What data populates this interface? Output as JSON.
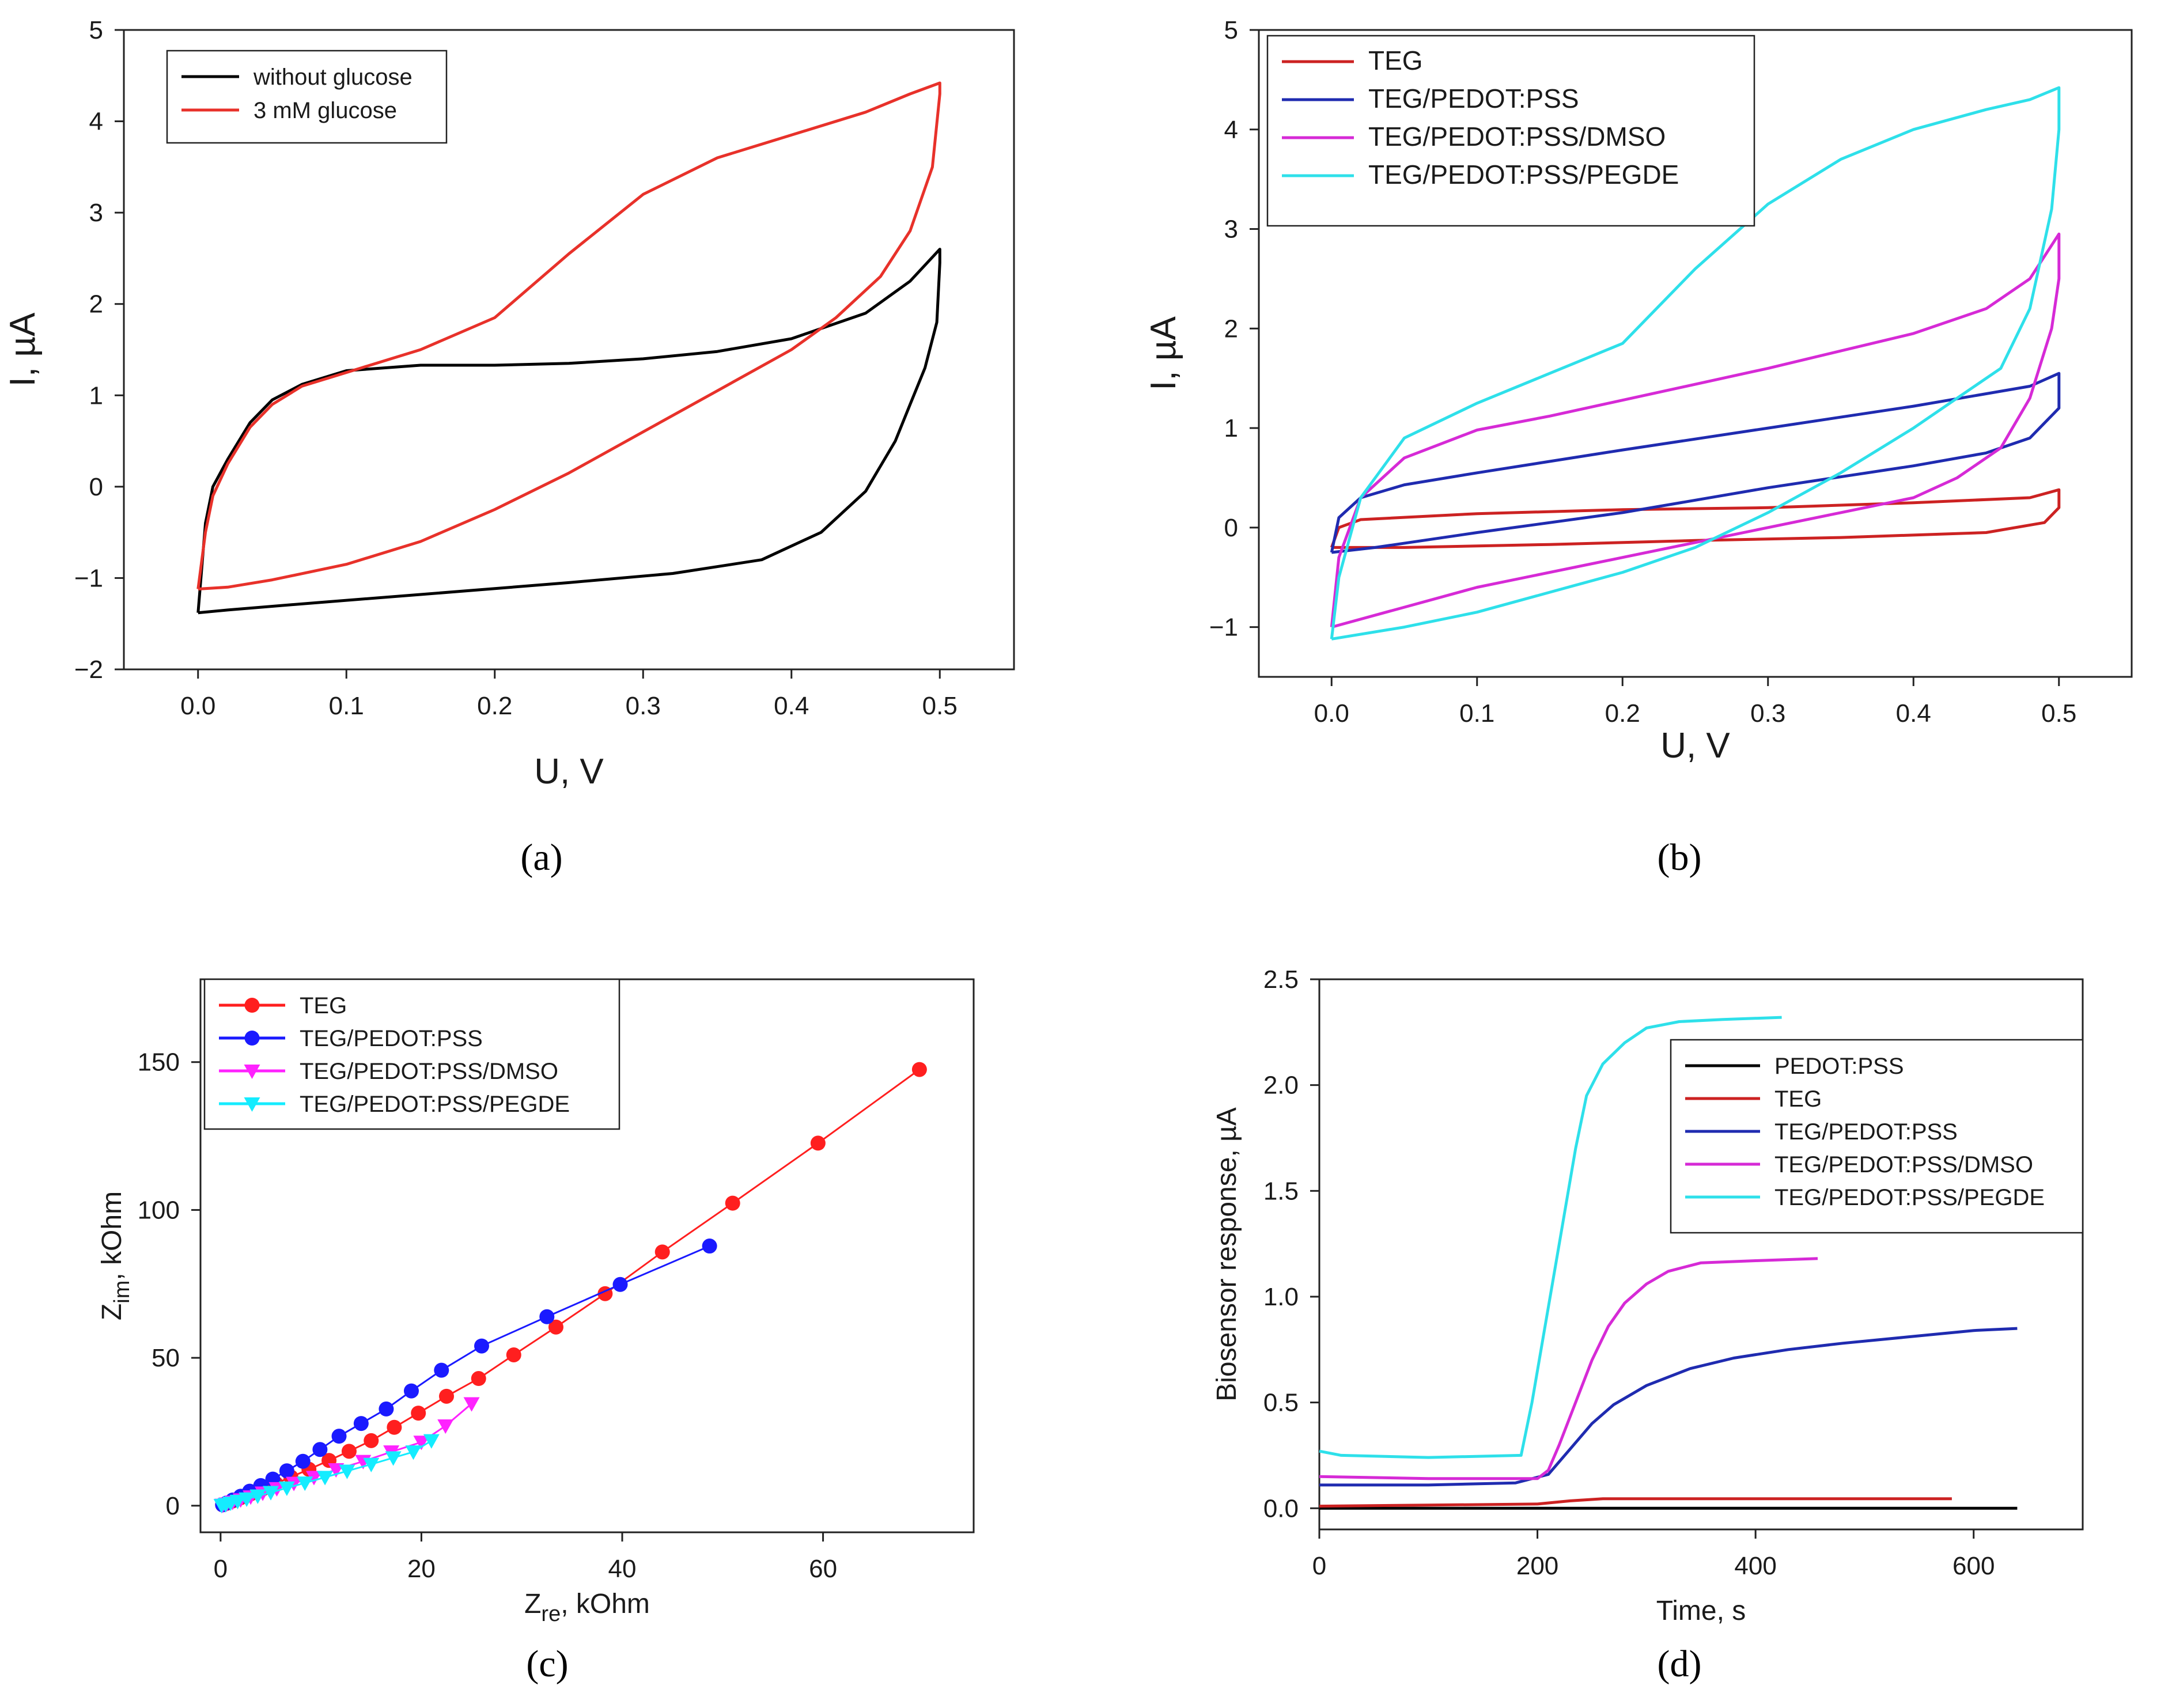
{
  "figure": {
    "panels": [
      "(a)",
      "(b)",
      "(c)",
      "(d)"
    ]
  },
  "chart_data": [
    {
      "id": "a",
      "type": "line",
      "caption": "(a)",
      "title": "",
      "xlabel": "U, V",
      "ylabel": "I, µA",
      "xlim": [
        -0.05,
        0.55
      ],
      "ylim": [
        -2,
        5
      ],
      "xticks": [
        0.0,
        0.1,
        0.2,
        0.3,
        0.4,
        0.5
      ],
      "xtick_labels": [
        "0.0",
        "0.1",
        "0.2",
        "0.3",
        "0.4",
        "0.5"
      ],
      "yticks": [
        -2,
        -1,
        0,
        1,
        2,
        3,
        4,
        5
      ],
      "ytick_labels": [
        "−2",
        "−1",
        "0",
        "1",
        "2",
        "3",
        "4",
        "5"
      ],
      "legend": "top-left",
      "series": [
        {
          "name": "without glucose",
          "color": "#000000",
          "x": [
            0.0,
            0.005,
            0.01,
            0.02,
            0.035,
            0.05,
            0.07,
            0.1,
            0.15,
            0.2,
            0.25,
            0.3,
            0.35,
            0.4,
            0.45,
            0.48,
            0.5,
            0.5,
            0.498,
            0.49,
            0.48,
            0.47,
            0.45,
            0.42,
            0.38,
            0.32,
            0.25,
            0.15,
            0.08,
            0.02,
            0.0
          ],
          "y": [
            -1.38,
            -0.4,
            0.0,
            0.3,
            0.7,
            0.95,
            1.12,
            1.27,
            1.33,
            1.33,
            1.35,
            1.4,
            1.48,
            1.62,
            1.9,
            2.25,
            2.6,
            2.45,
            1.8,
            1.3,
            0.9,
            0.5,
            -0.05,
            -0.5,
            -0.8,
            -0.95,
            -1.05,
            -1.18,
            -1.27,
            -1.35,
            -1.38
          ]
        },
        {
          "name": "3 mM glucose",
          "color": "#e8312a",
          "x": [
            0.0,
            0.005,
            0.01,
            0.02,
            0.035,
            0.05,
            0.07,
            0.1,
            0.15,
            0.2,
            0.25,
            0.3,
            0.35,
            0.4,
            0.45,
            0.48,
            0.5,
            0.5,
            0.495,
            0.48,
            0.46,
            0.43,
            0.4,
            0.35,
            0.3,
            0.25,
            0.2,
            0.15,
            0.1,
            0.05,
            0.02,
            0.0
          ],
          "y": [
            -1.12,
            -0.5,
            -0.1,
            0.25,
            0.65,
            0.9,
            1.1,
            1.25,
            1.5,
            1.85,
            2.55,
            3.2,
            3.6,
            3.85,
            4.1,
            4.3,
            4.42,
            4.3,
            3.5,
            2.8,
            2.3,
            1.85,
            1.5,
            1.05,
            0.6,
            0.15,
            -0.25,
            -0.6,
            -0.85,
            -1.02,
            -1.1,
            -1.12
          ]
        }
      ]
    },
    {
      "id": "b",
      "type": "line",
      "caption": "(b)",
      "title": "",
      "xlabel": "U, V",
      "ylabel": "I, µA",
      "xlim": [
        -0.05,
        0.55
      ],
      "ylim": [
        -1.5,
        5
      ],
      "xticks": [
        0.0,
        0.1,
        0.2,
        0.3,
        0.4,
        0.5
      ],
      "xtick_labels": [
        "0.0",
        "0.1",
        "0.2",
        "0.3",
        "0.4",
        "0.5"
      ],
      "yticks": [
        -1,
        0,
        1,
        2,
        3,
        4,
        5
      ],
      "ytick_labels": [
        "−1",
        "0",
        "1",
        "2",
        "3",
        "4",
        "5"
      ],
      "legend": "top-left",
      "series": [
        {
          "name": "TEG",
          "color": "#cc2222",
          "x": [
            0.0,
            0.005,
            0.02,
            0.1,
            0.2,
            0.3,
            0.4,
            0.48,
            0.5,
            0.5,
            0.49,
            0.45,
            0.35,
            0.25,
            0.15,
            0.05,
            0.0
          ],
          "y": [
            -0.2,
            0.0,
            0.08,
            0.14,
            0.18,
            0.2,
            0.25,
            0.3,
            0.38,
            0.2,
            0.05,
            -0.05,
            -0.1,
            -0.13,
            -0.17,
            -0.2,
            -0.2
          ]
        },
        {
          "name": "TEG/PEDOT:PSS",
          "color": "#1f2bb0",
          "x": [
            0.0,
            0.005,
            0.02,
            0.05,
            0.1,
            0.2,
            0.3,
            0.4,
            0.48,
            0.5,
            0.5,
            0.48,
            0.45,
            0.4,
            0.3,
            0.2,
            0.1,
            0.03,
            0.0
          ],
          "y": [
            -0.25,
            0.1,
            0.3,
            0.43,
            0.55,
            0.78,
            1.0,
            1.22,
            1.42,
            1.55,
            1.2,
            0.9,
            0.75,
            0.62,
            0.4,
            0.15,
            -0.05,
            -0.2,
            -0.25
          ]
        },
        {
          "name": "TEG/PEDOT:PSS/DMSO",
          "color": "#d62ad6",
          "x": [
            0.0,
            0.005,
            0.02,
            0.05,
            0.1,
            0.15,
            0.2,
            0.3,
            0.4,
            0.45,
            0.48,
            0.5,
            0.5,
            0.495,
            0.48,
            0.46,
            0.43,
            0.4,
            0.35,
            0.3,
            0.2,
            0.1,
            0.05,
            0.0
          ],
          "y": [
            -1.0,
            -0.3,
            0.3,
            0.7,
            0.98,
            1.12,
            1.28,
            1.6,
            1.95,
            2.2,
            2.5,
            2.95,
            2.5,
            2.0,
            1.3,
            0.8,
            0.5,
            0.3,
            0.15,
            0.0,
            -0.3,
            -0.6,
            -0.8,
            -1.0
          ]
        },
        {
          "name": "TEG/PEDOT:PSS/PEGDE",
          "color": "#2ee0ea",
          "x": [
            0.0,
            0.005,
            0.02,
            0.05,
            0.1,
            0.15,
            0.2,
            0.25,
            0.3,
            0.35,
            0.4,
            0.45,
            0.48,
            0.5,
            0.5,
            0.495,
            0.48,
            0.46,
            0.43,
            0.4,
            0.35,
            0.3,
            0.25,
            0.2,
            0.15,
            0.1,
            0.05,
            0.0
          ],
          "y": [
            -1.12,
            -0.5,
            0.3,
            0.9,
            1.25,
            1.55,
            1.85,
            2.6,
            3.25,
            3.7,
            4.0,
            4.2,
            4.3,
            4.42,
            4.0,
            3.2,
            2.2,
            1.6,
            1.3,
            1.0,
            0.55,
            0.15,
            -0.2,
            -0.45,
            -0.65,
            -0.85,
            -1.0,
            -1.12
          ]
        }
      ]
    },
    {
      "id": "c",
      "type": "scatter",
      "caption": "(c)",
      "title": "",
      "xlabel": "Z",
      "xlabel_sub": "re",
      "xlabel_unit": ", kOhm",
      "ylabel": "Z",
      "ylabel_sub": "im",
      "ylabel_unit": ", kOhm",
      "xlim": [
        -2,
        75
      ],
      "ylim": [
        -9,
        178
      ],
      "xticks": [
        0,
        20,
        40,
        60
      ],
      "xtick_labels": [
        "0",
        "20",
        "40",
        "60"
      ],
      "yticks": [
        0,
        50,
        100,
        150
      ],
      "ytick_labels": [
        "0",
        "50",
        "100",
        "150"
      ],
      "legend": "top-left",
      "series": [
        {
          "name": "TEG",
          "color": "#ff1f1f",
          "marker": "circle",
          "x": [
            0.2,
            0.6,
            1.2,
            2.0,
            3.0,
            4.2,
            5.5,
            7.0,
            8.8,
            10.8,
            12.8,
            15.0,
            17.3,
            19.7,
            22.5,
            25.7,
            29.2,
            33.4,
            38.3,
            44.0,
            51.0,
            59.5,
            69.6
          ],
          "y": [
            0.3,
            0.8,
            1.6,
            2.7,
            4.0,
            5.7,
            7.5,
            9.7,
            12.3,
            15.3,
            18.4,
            22.0,
            26.5,
            31.3,
            37.0,
            43.0,
            51.0,
            60.4,
            71.7,
            85.8,
            102.3,
            122.6,
            147.5
          ]
        },
        {
          "name": "TEG/PEDOT:PSS",
          "color": "#1a1aff",
          "marker": "circle",
          "x": [
            0.2,
            0.6,
            1.2,
            2.0,
            2.9,
            4.0,
            5.2,
            6.6,
            8.2,
            9.9,
            11.8,
            14.0,
            16.5,
            19.0,
            22.0,
            26.0,
            32.5,
            39.8,
            48.7
          ],
          "y": [
            0.3,
            0.9,
            1.9,
            3.2,
            4.9,
            6.8,
            9.0,
            11.8,
            15.0,
            19.0,
            23.5,
            27.8,
            32.7,
            38.8,
            45.8,
            54.0,
            63.9,
            74.8,
            87.8
          ]
        },
        {
          "name": "TEG/PEDOT:PSS/DMSO",
          "color": "#ff22ff",
          "marker": "triangle-down",
          "x": [
            0.2,
            0.6,
            1.2,
            2.0,
            3.0,
            4.2,
            5.6,
            7.3,
            9.3,
            11.5,
            14.2,
            17.0,
            20.0,
            22.4,
            25.0
          ],
          "y": [
            0.2,
            0.6,
            1.2,
            2.0,
            3.0,
            4.3,
            5.8,
            7.6,
            9.6,
            12.2,
            15.0,
            18.2,
            21.5,
            27.0,
            34.5
          ]
        },
        {
          "name": "TEG/PEDOT:PSS/PEGDE",
          "color": "#14ecff",
          "marker": "triangle-down",
          "x": [
            0.1,
            0.5,
            1.0,
            1.7,
            2.6,
            3.7,
            5.0,
            6.6,
            8.4,
            10.4,
            12.6,
            15.0,
            17.2,
            19.2,
            21.0
          ],
          "y": [
            0.1,
            0.4,
            0.9,
            1.5,
            2.3,
            3.3,
            4.5,
            6.0,
            7.7,
            9.6,
            11.7,
            14.0,
            16.2,
            18.2,
            22.0
          ]
        }
      ]
    },
    {
      "id": "d",
      "type": "line",
      "caption": "(d)",
      "title": "",
      "xlabel": "Time, s",
      "ylabel": "Biosensor response, µA",
      "xlim": [
        0,
        700
      ],
      "ylim": [
        -0.1,
        2.5
      ],
      "xticks": [
        0,
        200,
        400,
        600
      ],
      "xtick_labels": [
        "0",
        "200",
        "400",
        "600"
      ],
      "yticks": [
        0.0,
        0.5,
        1.0,
        1.5,
        2.0,
        2.5
      ],
      "ytick_labels": [
        "0.0",
        "0.5",
        "1.0",
        "1.5",
        "2.0",
        "2.5"
      ],
      "legend": "right",
      "series": [
        {
          "name": "PEDOT:PSS",
          "color": "#000000",
          "x": [
            0,
            100,
            200,
            300,
            400,
            500,
            640
          ],
          "y": [
            0.0,
            0.0,
            0.0,
            0.0,
            0.0,
            0.0,
            0.0
          ]
        },
        {
          "name": "TEG",
          "color": "#cc2222",
          "x": [
            0,
            100,
            200,
            230,
            260,
            300,
            400,
            500,
            580
          ],
          "y": [
            0.01,
            0.015,
            0.02,
            0.035,
            0.045,
            0.045,
            0.045,
            0.045,
            0.045
          ]
        },
        {
          "name": "TEG/PEDOT:PSS",
          "color": "#1f2bb0",
          "x": [
            0,
            100,
            180,
            210,
            230,
            250,
            270,
            300,
            340,
            380,
            430,
            480,
            540,
            600,
            640
          ],
          "y": [
            0.11,
            0.11,
            0.12,
            0.16,
            0.28,
            0.4,
            0.49,
            0.58,
            0.66,
            0.71,
            0.75,
            0.78,
            0.81,
            0.84,
            0.85
          ]
        },
        {
          "name": "TEG/PEDOT:PSS/DMSO",
          "color": "#d62ad6",
          "x": [
            0,
            100,
            200,
            210,
            220,
            235,
            250,
            265,
            280,
            300,
            320,
            350,
            400,
            457
          ],
          "y": [
            0.15,
            0.14,
            0.14,
            0.18,
            0.3,
            0.5,
            0.7,
            0.86,
            0.97,
            1.06,
            1.12,
            1.16,
            1.17,
            1.18
          ]
        },
        {
          "name": "TEG/PEDOT:PSS/PEGDE",
          "color": "#2ee0ea",
          "x": [
            0,
            20,
            100,
            185,
            195,
            205,
            215,
            225,
            235,
            245,
            260,
            280,
            300,
            330,
            370,
            424
          ],
          "y": [
            0.27,
            0.25,
            0.24,
            0.25,
            0.5,
            0.8,
            1.1,
            1.4,
            1.7,
            1.95,
            2.1,
            2.2,
            2.27,
            2.3,
            2.31,
            2.32
          ]
        }
      ]
    }
  ]
}
